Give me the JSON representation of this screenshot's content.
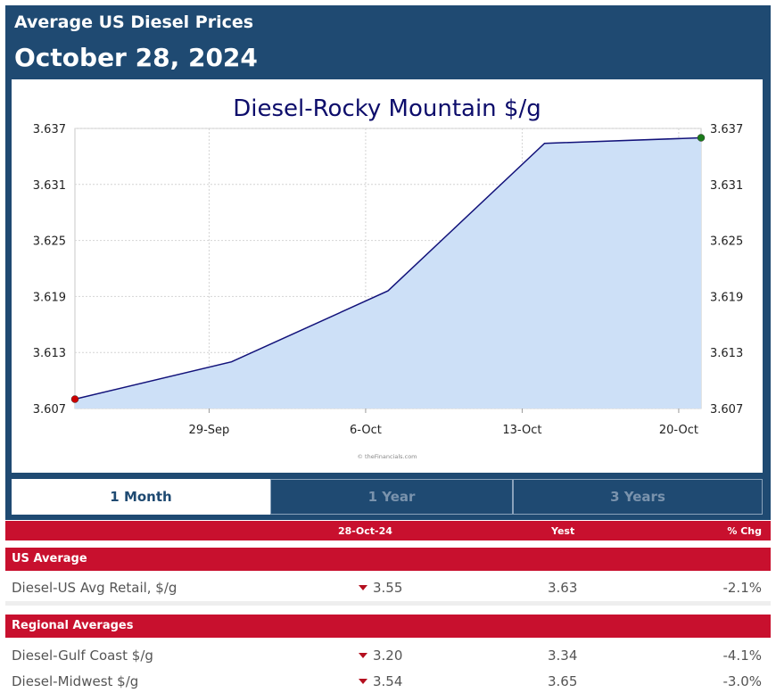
{
  "header": {
    "title": "Average US Diesel Prices",
    "date": "October 28, 2024"
  },
  "chart_data": {
    "type": "area",
    "title": "Diesel-Rocky Mountain $/g",
    "x": [
      "2024-09-23",
      "2024-09-30",
      "2024-10-07",
      "2024-10-14",
      "2024-10-21"
    ],
    "y": [
      3.608,
      3.612,
      3.6196,
      3.6354,
      3.636
    ],
    "x_tick_labels": [
      "29-Sep",
      "6-Oct",
      "13-Oct",
      "20-Oct"
    ],
    "x_tick_dates": [
      "2024-09-29",
      "2024-10-06",
      "2024-10-13",
      "2024-10-20"
    ],
    "x_range": [
      "2024-09-23",
      "2024-10-21"
    ],
    "y_ticks": [
      "3.607",
      "3.613",
      "3.619",
      "3.625",
      "3.631",
      "3.637"
    ],
    "ylim": [
      3.607,
      3.637
    ],
    "grid": true,
    "watermark": "© theFinancials.com",
    "colors": {
      "fill": "#cde0f7",
      "line": "#12127a",
      "start_marker": "#cc0000",
      "end_marker": "#1a7a1a",
      "title": "#0d0d6b"
    }
  },
  "tabs": [
    {
      "label": "1 Month",
      "active": true
    },
    {
      "label": "1 Year",
      "active": false
    },
    {
      "label": "3 Years",
      "active": false
    }
  ],
  "table": {
    "headers": {
      "current": "28-Oct-24",
      "yest": "Yest",
      "chg": "% Chg"
    },
    "sections": [
      {
        "title": "US Average",
        "rows": [
          {
            "name": "Diesel-US Avg Retail, $/g",
            "current": "3.55",
            "yest": "3.63",
            "chg": "-2.1%",
            "direction": "down"
          }
        ]
      },
      {
        "title": "Regional Averages",
        "rows": [
          {
            "name": "Diesel-Gulf Coast $/g",
            "current": "3.20",
            "yest": "3.34",
            "chg": "-4.1%",
            "direction": "down"
          },
          {
            "name": "Diesel-Midwest $/g",
            "current": "3.54",
            "yest": "3.65",
            "chg": "-3.0%",
            "direction": "down"
          }
        ]
      }
    ]
  },
  "colors": {
    "header_bg": "#1f4a72",
    "table_header_bg": "#c8102e",
    "down_arrow": "#b40f1f"
  }
}
